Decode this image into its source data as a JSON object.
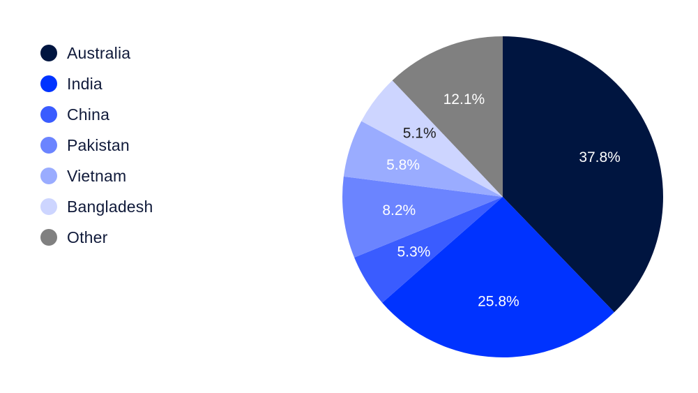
{
  "chart_data": {
    "type": "pie",
    "title": "",
    "legend_position": "left",
    "start_angle_deg": 0,
    "direction": "clockwise",
    "slices": [
      {
        "name": "Australia",
        "value": 37.8,
        "label": "37.8%",
        "color": "#001540"
      },
      {
        "name": "India",
        "value": 25.8,
        "label": "25.8%",
        "color": "#0033ff"
      },
      {
        "name": "China",
        "value": 5.3,
        "label": "5.3%",
        "color": "#3a5cff"
      },
      {
        "name": "Pakistan",
        "value": 8.2,
        "label": "8.2%",
        "color": "#6b84ff"
      },
      {
        "name": "Vietnam",
        "value": 5.8,
        "label": "5.8%",
        "color": "#9aacff"
      },
      {
        "name": "Bangladesh",
        "value": 5.1,
        "label": "5.1%",
        "color": "#cdd5ff"
      },
      {
        "name": "Other",
        "value": 12.1,
        "label": "12.1%",
        "color": "#808080"
      }
    ]
  }
}
